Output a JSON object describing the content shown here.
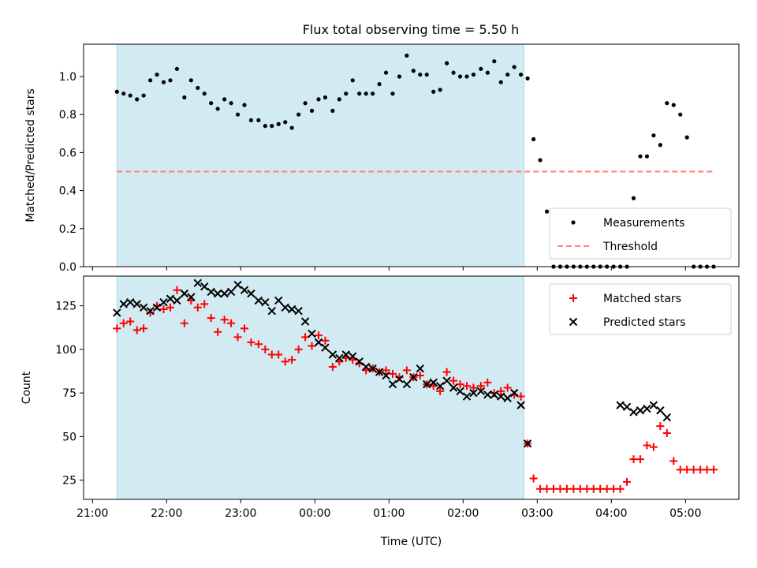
{
  "title": "Flux total observing time = 5.50 h",
  "colors": {
    "shade": "#add8e6",
    "threshold": "#ff7f7f",
    "measure": "#000000",
    "matched": "#ff0000",
    "predicted": "#000000"
  },
  "chart_data": [
    {
      "type": "scatter",
      "ylabel": "Matched/Predicted stars",
      "xlabel": "",
      "xlim": [
        -0.12,
        8.72
      ],
      "ylim": [
        0,
        1.17
      ],
      "yticks": [
        0.0,
        0.2,
        0.4,
        0.6,
        0.8,
        1.0
      ],
      "ytick_labels": [
        "0.0",
        "0.2",
        "0.4",
        "0.6",
        "0.8",
        "1.0"
      ],
      "shaded_x": [
        0.33,
        5.82
      ],
      "legend": {
        "position": "lower right",
        "entries": [
          "Measurements",
          "Threshold"
        ]
      },
      "threshold": {
        "name": "Threshold",
        "y": 0.5,
        "x": [
          0.33,
          8.4
        ]
      },
      "series": [
        {
          "name": "Measurements",
          "x": [
            0.33,
            0.42,
            0.51,
            0.6,
            0.69,
            0.78,
            0.87,
            0.96,
            1.05,
            1.14,
            1.24,
            1.33,
            1.42,
            1.51,
            1.6,
            1.69,
            1.78,
            1.87,
            1.96,
            2.05,
            2.14,
            2.24,
            2.33,
            2.42,
            2.51,
            2.6,
            2.69,
            2.78,
            2.87,
            2.96,
            3.05,
            3.14,
            3.24,
            3.33,
            3.42,
            3.51,
            3.6,
            3.69,
            3.78,
            3.87,
            3.96,
            4.05,
            4.14,
            4.24,
            4.33,
            4.42,
            4.51,
            4.6,
            4.69,
            4.78,
            4.87,
            4.96,
            5.05,
            5.14,
            5.24,
            5.33,
            5.42,
            5.51,
            5.6,
            5.69,
            5.78,
            5.87,
            5.95,
            6.04,
            6.13,
            6.22,
            6.31,
            6.4,
            6.49,
            6.58,
            6.67,
            6.76,
            6.85,
            6.94,
            7.03,
            7.12,
            7.21,
            7.3,
            7.39,
            7.48,
            7.57,
            7.66,
            7.75,
            7.84,
            7.93,
            8.02,
            8.11,
            8.2,
            8.29,
            8.38
          ],
          "values": [
            0.92,
            0.91,
            0.9,
            0.88,
            0.9,
            0.98,
            1.01,
            0.97,
            0.98,
            1.04,
            0.89,
            0.98,
            0.94,
            0.91,
            0.86,
            0.83,
            0.88,
            0.86,
            0.8,
            0.85,
            0.77,
            0.77,
            0.74,
            0.74,
            0.75,
            0.76,
            0.73,
            0.8,
            0.86,
            0.82,
            0.88,
            0.89,
            0.82,
            0.88,
            0.91,
            0.98,
            0.91,
            0.91,
            0.91,
            0.96,
            1.02,
            0.91,
            1.0,
            1.11,
            1.03,
            1.01,
            1.01,
            0.92,
            0.93,
            1.07,
            1.02,
            1.0,
            1.0,
            1.01,
            1.04,
            1.02,
            1.08,
            0.97,
            1.01,
            1.05,
            1.01,
            0.99,
            0.67,
            0.56,
            0.29,
            0.0,
            0.0,
            0.0,
            0.0,
            0.0,
            0.0,
            0.0,
            0.0,
            0.0,
            0.0,
            0.0,
            0.0,
            0.36,
            0.58,
            0.58,
            0.69,
            0.64,
            0.86,
            0.85,
            0.8,
            0.68,
            0.0,
            0.0,
            0.0,
            0.0
          ]
        }
      ]
    },
    {
      "type": "scatter",
      "ylabel": "Count",
      "xlabel": "Time (UTC)",
      "xlim": [
        -0.12,
        8.72
      ],
      "ylim": [
        14,
        142
      ],
      "yticks": [
        25,
        50,
        75,
        100,
        125
      ],
      "ytick_labels": [
        "25",
        "50",
        "75",
        "100",
        "125"
      ],
      "xticks": [
        0,
        1,
        2,
        3,
        4,
        5,
        6,
        7,
        8
      ],
      "xtick_labels": [
        "21:00",
        "22:00",
        "23:00",
        "00:00",
        "01:00",
        "02:00",
        "03:00",
        "04:00",
        "05:00"
      ],
      "shaded_x": [
        0.33,
        5.82
      ],
      "legend": {
        "position": "upper right",
        "entries": [
          "Matched stars",
          "Predicted stars"
        ]
      },
      "series": [
        {
          "name": "Matched stars",
          "marker": "+",
          "x": [
            0.33,
            0.42,
            0.51,
            0.6,
            0.69,
            0.78,
            0.87,
            0.96,
            1.05,
            1.14,
            1.24,
            1.33,
            1.42,
            1.51,
            1.6,
            1.69,
            1.78,
            1.87,
            1.96,
            2.05,
            2.14,
            2.24,
            2.33,
            2.42,
            2.51,
            2.6,
            2.69,
            2.78,
            2.87,
            2.96,
            3.05,
            3.14,
            3.24,
            3.33,
            3.42,
            3.51,
            3.6,
            3.69,
            3.78,
            3.87,
            3.96,
            4.05,
            4.14,
            4.24,
            4.33,
            4.42,
            4.51,
            4.6,
            4.69,
            4.78,
            4.87,
            4.96,
            5.05,
            5.14,
            5.24,
            5.33,
            5.42,
            5.51,
            5.6,
            5.69,
            5.78,
            5.87,
            5.95,
            6.04,
            6.13,
            6.22,
            6.31,
            6.4,
            6.49,
            6.58,
            6.67,
            6.76,
            6.85,
            6.94,
            7.03,
            7.12,
            7.21,
            7.3,
            7.39,
            7.48,
            7.57,
            7.66,
            7.75,
            7.84,
            7.93,
            8.02,
            8.11,
            8.2,
            8.29,
            8.38
          ],
          "values": [
            112,
            115,
            116,
            111,
            112,
            121,
            125,
            123,
            124,
            134,
            115,
            128,
            124,
            126,
            118,
            110,
            117,
            115,
            107,
            112,
            104,
            103,
            100,
            97,
            97,
            93,
            94,
            100,
            107,
            102,
            108,
            105,
            90,
            93,
            95,
            94,
            92,
            88,
            89,
            87,
            88,
            86,
            84,
            88,
            84,
            85,
            80,
            79,
            76,
            87,
            82,
            80,
            79,
            78,
            79,
            81,
            75,
            76,
            78,
            74,
            73,
            46,
            26,
            20,
            20,
            20,
            20,
            20,
            20,
            20,
            20,
            20,
            20,
            20,
            20,
            20,
            24,
            37,
            37,
            45,
            44,
            56,
            52,
            36,
            31,
            31,
            31,
            31,
            31,
            31
          ]
        },
        {
          "name": "Predicted stars",
          "marker": "x",
          "x": [
            0.33,
            0.42,
            0.51,
            0.6,
            0.69,
            0.78,
            0.87,
            0.96,
            1.05,
            1.14,
            1.24,
            1.33,
            1.42,
            1.51,
            1.6,
            1.69,
            1.78,
            1.87,
            1.96,
            2.05,
            2.14,
            2.24,
            2.33,
            2.42,
            2.51,
            2.6,
            2.69,
            2.78,
            2.87,
            2.96,
            3.05,
            3.14,
            3.24,
            3.33,
            3.42,
            3.51,
            3.6,
            3.69,
            3.78,
            3.87,
            3.96,
            4.05,
            4.14,
            4.24,
            4.33,
            4.42,
            4.51,
            4.6,
            4.69,
            4.78,
            4.87,
            4.96,
            5.05,
            5.14,
            5.24,
            5.33,
            5.42,
            5.51,
            5.6,
            5.69,
            5.78,
            5.87,
            7.12,
            7.21,
            7.3,
            7.39,
            7.48,
            7.57,
            7.66,
            7.75
          ],
          "values": [
            121,
            126,
            127,
            126,
            124,
            122,
            124,
            127,
            129,
            128,
            132,
            130,
            138,
            136,
            133,
            132,
            132,
            133,
            137,
            134,
            132,
            128,
            127,
            122,
            128,
            124,
            123,
            122,
            116,
            109,
            104,
            101,
            97,
            95,
            97,
            96,
            93,
            90,
            89,
            87,
            85,
            80,
            83,
            80,
            84,
            89,
            80,
            81,
            79,
            82,
            78,
            76,
            73,
            75,
            76,
            74,
            74,
            73,
            72,
            75,
            68,
            46,
            68,
            67,
            64,
            65,
            66,
            68,
            65,
            61
          ]
        }
      ]
    }
  ]
}
